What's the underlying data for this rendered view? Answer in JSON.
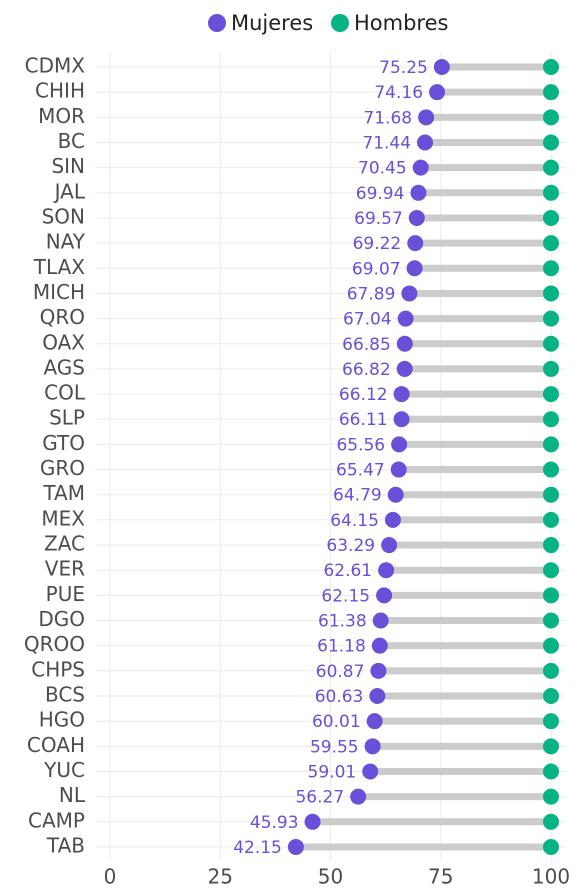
{
  "chart_data": {
    "type": "dumbbell",
    "categories": [
      "CDMX",
      "CHIH",
      "MOR",
      "BC",
      "SIN",
      "JAL",
      "SON",
      "NAY",
      "TLAX",
      "MICH",
      "QRO",
      "OAX",
      "AGS",
      "COL",
      "SLP",
      "GTO",
      "GRO",
      "TAM",
      "MEX",
      "ZAC",
      "VER",
      "PUE",
      "DGO",
      "QROO",
      "CHPS",
      "BCS",
      "HGO",
      "COAH",
      "YUC",
      "NL",
      "CAMP",
      "TAB"
    ],
    "series": [
      {
        "name": "Mujeres",
        "color": "#6a4fd8",
        "values": [
          75.25,
          74.16,
          71.68,
          71.44,
          70.45,
          69.94,
          69.57,
          69.22,
          69.07,
          67.89,
          67.04,
          66.85,
          66.82,
          66.12,
          66.11,
          65.56,
          65.47,
          64.79,
          64.15,
          63.29,
          62.61,
          62.15,
          61.38,
          61.18,
          60.87,
          60.63,
          60.01,
          59.55,
          59.01,
          56.27,
          45.93,
          42.15
        ]
      },
      {
        "name": "Hombres",
        "color": "#05b384",
        "values": [
          100,
          100,
          100,
          100,
          100,
          100,
          100,
          100,
          100,
          100,
          100,
          100,
          100,
          100,
          100,
          100,
          100,
          100,
          100,
          100,
          100,
          100,
          100,
          100,
          100,
          100,
          100,
          100,
          100,
          100,
          100,
          100
        ]
      }
    ],
    "xlim": [
      0,
      100
    ],
    "xticks": [
      0,
      25,
      50,
      75,
      100
    ],
    "grid": true,
    "legend": "top"
  }
}
